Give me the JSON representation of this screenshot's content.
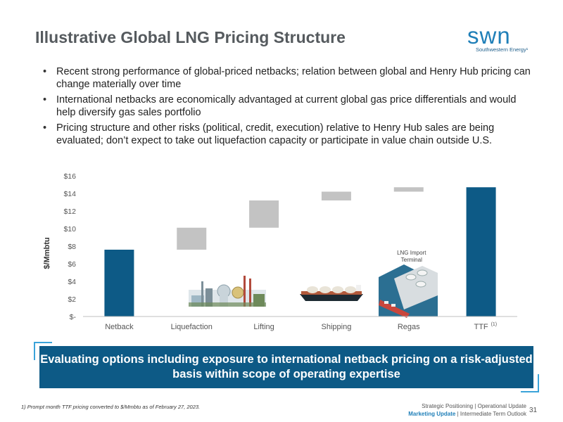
{
  "slide": {
    "title": "Illustrative Global LNG Pricing Structure",
    "logo": {
      "name": "swn",
      "tagline": "Southwestern Energy¹"
    },
    "bullets": [
      "Recent strong performance of global-priced netbacks; relation between global and Henry Hub pricing can change materially over time",
      "International netbacks are economically advantaged at current global gas price differentials and would help diversify gas sales portfolio",
      "Pricing structure and other risks (political, credit, execution) relative to Henry Hub sales are being evaluated; don’t expect to take out liquefaction capacity or participate in value chain outside U.S."
    ],
    "banner": "Evaluating options including exposure to international netback pricing on a risk-adjusted basis within scope of operating expertise",
    "footnote": "1) Prompt month TTF pricing converted to $/Mmbtu as of February 27, 2023.",
    "footer": {
      "line1": "Strategic Positioning | Operational Update",
      "line2_active": "Marketing Update",
      "line2_rest": " | Intermediate Term Outlook",
      "page": "31"
    }
  },
  "chart_data": {
    "type": "bar",
    "subtype": "waterfall",
    "categories": [
      "Netback",
      "Liquefaction",
      "Lifting",
      "Shipping",
      "Regas",
      "TTF"
    ],
    "category_superscripts": [
      "",
      "",
      "",
      "",
      "",
      "(1)"
    ],
    "bars": [
      {
        "category": "Netback",
        "base": 0,
        "value": 7.6,
        "kind": "total"
      },
      {
        "category": "Liquefaction",
        "base": 7.6,
        "value": 2.5,
        "kind": "step"
      },
      {
        "category": "Lifting",
        "base": 10.1,
        "value": 3.1,
        "kind": "step"
      },
      {
        "category": "Shipping",
        "base": 13.2,
        "value": 1.0,
        "kind": "step"
      },
      {
        "category": "Regas",
        "base": 14.2,
        "value": 0.5,
        "kind": "step"
      },
      {
        "category": "TTF",
        "base": 0,
        "value": 14.7,
        "kind": "total"
      }
    ],
    "ylabel": "$/Mmbtu",
    "ylim": [
      0,
      16
    ],
    "yticks": [
      0,
      2,
      4,
      6,
      8,
      10,
      12,
      14,
      16
    ],
    "ytick_labels": [
      "$-",
      "$2",
      "$4",
      "$6",
      "$8",
      "$10",
      "$12",
      "$14",
      "$16"
    ],
    "grid": false,
    "annotations": [
      "LNG Import Terminal"
    ],
    "colors": {
      "total": "#0d5a86",
      "step": "#c3c3c3",
      "axis": "#bfbfbf",
      "label": "#555555"
    }
  }
}
